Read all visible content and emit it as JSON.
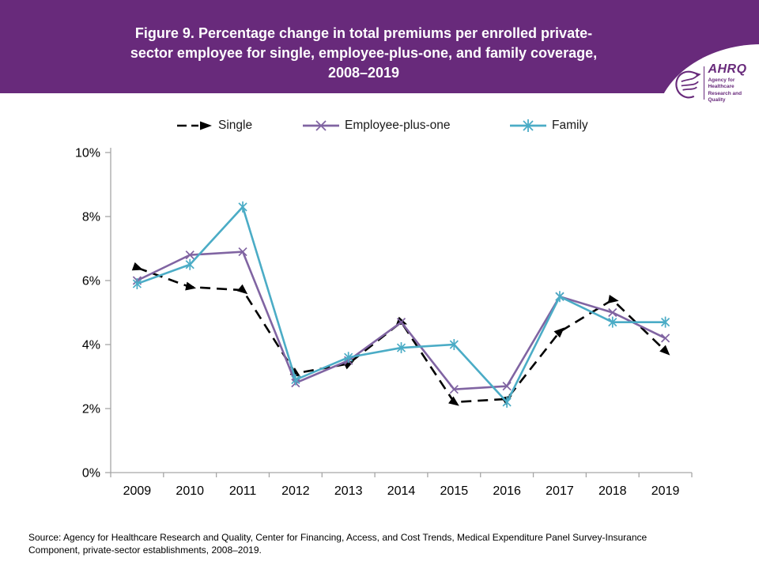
{
  "header": {
    "title_lines": [
      "Figure 9. Percentage change in total premiums per enrolled private-",
      "sector employee for single, employee-plus-one, and family coverage,",
      "2008–2019"
    ],
    "bg_color": "#682a7b",
    "logo": {
      "abbr": "AHRQ",
      "tagline_lines": [
        "Agency for Healthcare",
        "Research and Quality"
      ],
      "color": "#682a7b"
    }
  },
  "legend": [
    {
      "label": "Single",
      "color": "#000000",
      "marker": "triangle",
      "dash": true
    },
    {
      "label": "Employee-plus-one",
      "color": "#8064a2",
      "marker": "x",
      "dash": false
    },
    {
      "label": "Family",
      "color": "#4bacc6",
      "marker": "asterisk",
      "dash": false
    }
  ],
  "chart_data": {
    "type": "line",
    "title": "Figure 9. Percentage change in total premiums per enrolled private-sector employee for single, employee-plus-one, and family coverage, 2008–2019",
    "categories": [
      "2009",
      "2010",
      "2011",
      "2012",
      "2013",
      "2014",
      "2015",
      "2016",
      "2017",
      "2018",
      "2019"
    ],
    "series": [
      {
        "id": "single",
        "name": "Single",
        "color": "#000000",
        "marker": "triangle",
        "dash": true,
        "values": [
          6.4,
          5.8,
          5.7,
          3.1,
          3.4,
          4.7,
          2.2,
          2.3,
          4.4,
          5.4,
          3.8
        ]
      },
      {
        "id": "employee-plus-one",
        "name": "Employee-plus-one",
        "color": "#8064a2",
        "marker": "x",
        "dash": false,
        "values": [
          6.0,
          6.8,
          6.9,
          2.8,
          3.5,
          4.7,
          2.6,
          2.7,
          5.5,
          5.0,
          4.2
        ]
      },
      {
        "id": "family",
        "name": "Family",
        "color": "#4bacc6",
        "marker": "asterisk",
        "dash": false,
        "values": [
          5.9,
          6.5,
          8.3,
          2.9,
          3.6,
          3.9,
          4.0,
          2.2,
          5.5,
          4.7,
          4.7
        ]
      }
    ],
    "xlabel": "",
    "ylabel": "",
    "ylim": [
      0,
      10
    ],
    "ytick_step": 2,
    "ytick_suffix": "%",
    "grid": false,
    "legend_position": "top",
    "axis_color": "#a6a6a6"
  },
  "source": {
    "text": "Source: Agency for Healthcare Research and Quality, Center for Financing, Access, and Cost Trends, Medical Expenditure Panel Survey-Insurance Component, private-sector establishments, 2008–2019."
  }
}
